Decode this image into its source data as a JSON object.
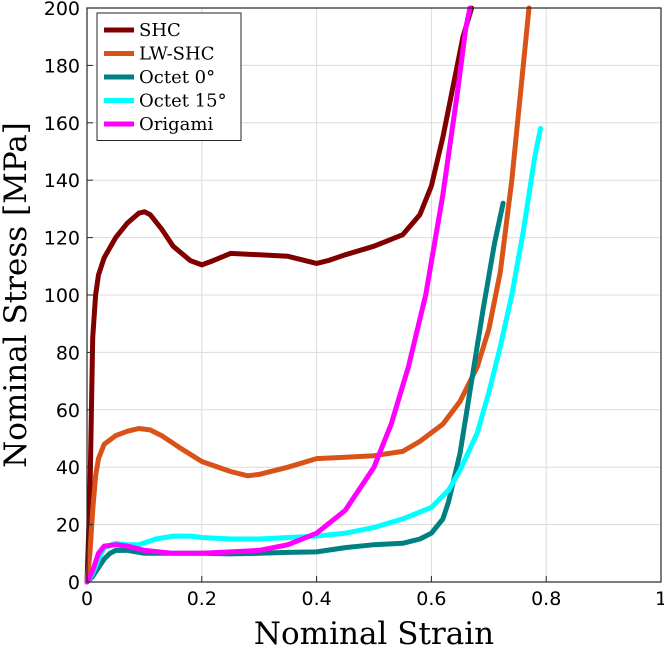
{
  "chart_data": {
    "type": "line",
    "title": "",
    "xlabel": "Nominal Strain",
    "ylabel": "Nominal Stress [MPa]",
    "xlim": [
      0,
      1
    ],
    "ylim": [
      0,
      200
    ],
    "xticks": [
      0,
      0.2,
      0.4,
      0.6,
      0.8,
      1
    ],
    "xtick_labels": [
      "0",
      "0.2",
      "0.4",
      "0.6",
      "0.8",
      "1"
    ],
    "yticks": [
      0,
      20,
      40,
      60,
      80,
      100,
      120,
      140,
      160,
      180,
      200
    ],
    "ytick_labels": [
      "0",
      "20",
      "40",
      "60",
      "80",
      "100",
      "120",
      "140",
      "160",
      "180",
      "200"
    ],
    "grid": true,
    "legend_position": "top-left",
    "series": [
      {
        "name": "SHC",
        "color": "#800000",
        "x": [
          0,
          0.005,
          0.01,
          0.015,
          0.02,
          0.03,
          0.05,
          0.07,
          0.09,
          0.1,
          0.11,
          0.13,
          0.15,
          0.18,
          0.2,
          0.22,
          0.25,
          0.3,
          0.35,
          0.4,
          0.42,
          0.45,
          0.5,
          0.55,
          0.58,
          0.6,
          0.62,
          0.64,
          0.655,
          0.67
        ],
        "y": [
          0,
          30,
          85,
          100,
          107,
          113,
          120,
          125,
          128.5,
          129,
          128,
          123,
          117,
          112,
          110.5,
          112,
          114.5,
          114,
          113.5,
          111,
          112,
          114,
          117,
          121,
          128,
          138,
          155,
          175,
          190,
          200
        ]
      },
      {
        "name": "LW-SHC",
        "color": "#d95319",
        "x": [
          0,
          0.005,
          0.01,
          0.015,
          0.02,
          0.03,
          0.05,
          0.07,
          0.09,
          0.11,
          0.13,
          0.16,
          0.2,
          0.25,
          0.28,
          0.3,
          0.35,
          0.4,
          0.45,
          0.5,
          0.55,
          0.58,
          0.6,
          0.62,
          0.65,
          0.68,
          0.7,
          0.72,
          0.74,
          0.755,
          0.77
        ],
        "y": [
          0,
          10,
          25,
          37,
          43,
          48,
          51,
          52.5,
          53.5,
          53,
          51,
          47,
          42,
          38.5,
          37,
          37.5,
          40,
          43,
          43.5,
          44,
          45.5,
          49,
          52,
          55,
          63,
          75,
          88,
          108,
          140,
          170,
          200
        ]
      },
      {
        "name": "Octet 0°",
        "color": "#008080",
        "x": [
          0,
          0.01,
          0.02,
          0.03,
          0.04,
          0.05,
          0.07,
          0.1,
          0.15,
          0.2,
          0.25,
          0.3,
          0.35,
          0.4,
          0.45,
          0.5,
          0.55,
          0.58,
          0.6,
          0.62,
          0.63,
          0.65,
          0.67,
          0.69,
          0.71,
          0.725
        ],
        "y": [
          0,
          2,
          5,
          8,
          10,
          11,
          11,
          10,
          10,
          10,
          9.8,
          10,
          10.3,
          10.5,
          12,
          13,
          13.5,
          15,
          17,
          22,
          28,
          45,
          70,
          95,
          118,
          132
        ]
      },
      {
        "name": "Octet 15°",
        "color": "#00ffff",
        "x": [
          0,
          0.01,
          0.02,
          0.03,
          0.05,
          0.07,
          0.09,
          0.12,
          0.15,
          0.18,
          0.2,
          0.25,
          0.3,
          0.35,
          0.4,
          0.45,
          0.5,
          0.55,
          0.6,
          0.63,
          0.65,
          0.68,
          0.7,
          0.72,
          0.74,
          0.76,
          0.78,
          0.79
        ],
        "y": [
          0,
          3,
          8,
          12,
          13.5,
          13,
          13,
          15,
          16,
          16,
          15.5,
          15,
          15,
          15.5,
          16,
          17,
          19,
          22,
          26,
          32,
          39,
          52,
          66,
          82,
          100,
          122,
          148,
          158
        ]
      },
      {
        "name": "Origami",
        "color": "#ff00ff",
        "x": [
          0,
          0.01,
          0.02,
          0.03,
          0.05,
          0.07,
          0.1,
          0.15,
          0.2,
          0.25,
          0.3,
          0.35,
          0.4,
          0.45,
          0.5,
          0.53,
          0.56,
          0.59,
          0.62,
          0.645,
          0.66,
          0.667
        ],
        "y": [
          0,
          4,
          10,
          12.5,
          13,
          12.5,
          11,
          10,
          10,
          10.5,
          11,
          13,
          17,
          25,
          40,
          55,
          75,
          100,
          135,
          170,
          193,
          200
        ]
      }
    ]
  }
}
